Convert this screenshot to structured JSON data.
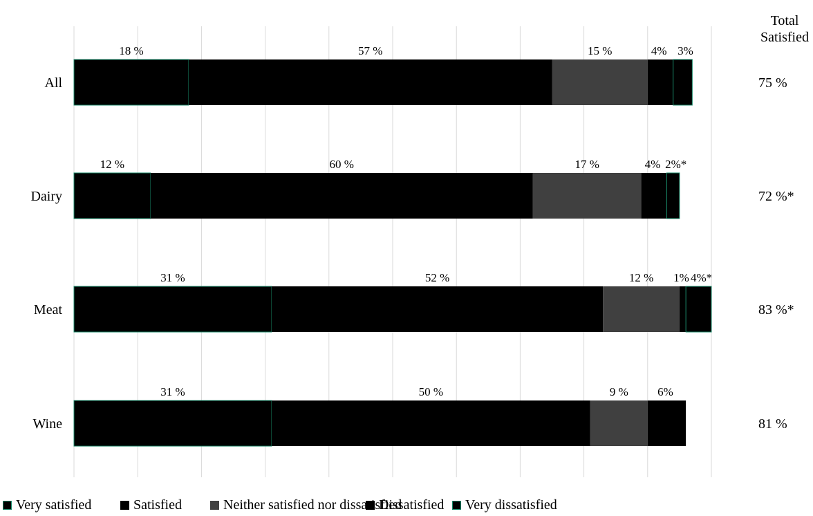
{
  "chart_data": {
    "type": "bar",
    "orientation": "horizontal",
    "stacked": true,
    "grid": true,
    "legend_position": "bottom",
    "xlim": [
      0,
      100
    ],
    "categories": [
      "All",
      "Dairy",
      "Meat",
      "Wine"
    ],
    "series": [
      {
        "name": "Very satisfied",
        "color": "#000000",
        "outline": "#1a8a6a",
        "values": [
          18,
          12,
          31,
          31
        ],
        "labels": [
          "18 %",
          "12 %",
          "31 %",
          "31 %"
        ]
      },
      {
        "name": "Satisfied",
        "color": "#000000",
        "values": [
          57,
          60,
          52,
          50
        ],
        "labels": [
          "57 %",
          "60 %",
          "52 %",
          "50 %"
        ]
      },
      {
        "name": "Neither satisfied nor dissatisfied",
        "color": "#404040",
        "values": [
          15,
          17,
          12,
          9
        ],
        "labels": [
          "15 %",
          "17 %",
          "12 %",
          "9 %"
        ]
      },
      {
        "name": "Dissatisfied",
        "color": "#000000",
        "values": [
          4,
          4,
          1,
          6
        ],
        "labels": [
          "4%",
          "4%",
          "1%",
          "6%"
        ]
      },
      {
        "name": "Very dissatisfied",
        "color": "#000000",
        "outline": "#1a8a6a",
        "values": [
          3,
          2,
          4,
          0
        ],
        "labels": [
          "3%",
          "2%*",
          "4%*",
          ""
        ]
      }
    ],
    "total_satisfied_header": [
      "Total",
      "Satisfied"
    ],
    "total_satisfied": [
      "75 %",
      "72 %*",
      "83 %*",
      "81 %"
    ]
  }
}
